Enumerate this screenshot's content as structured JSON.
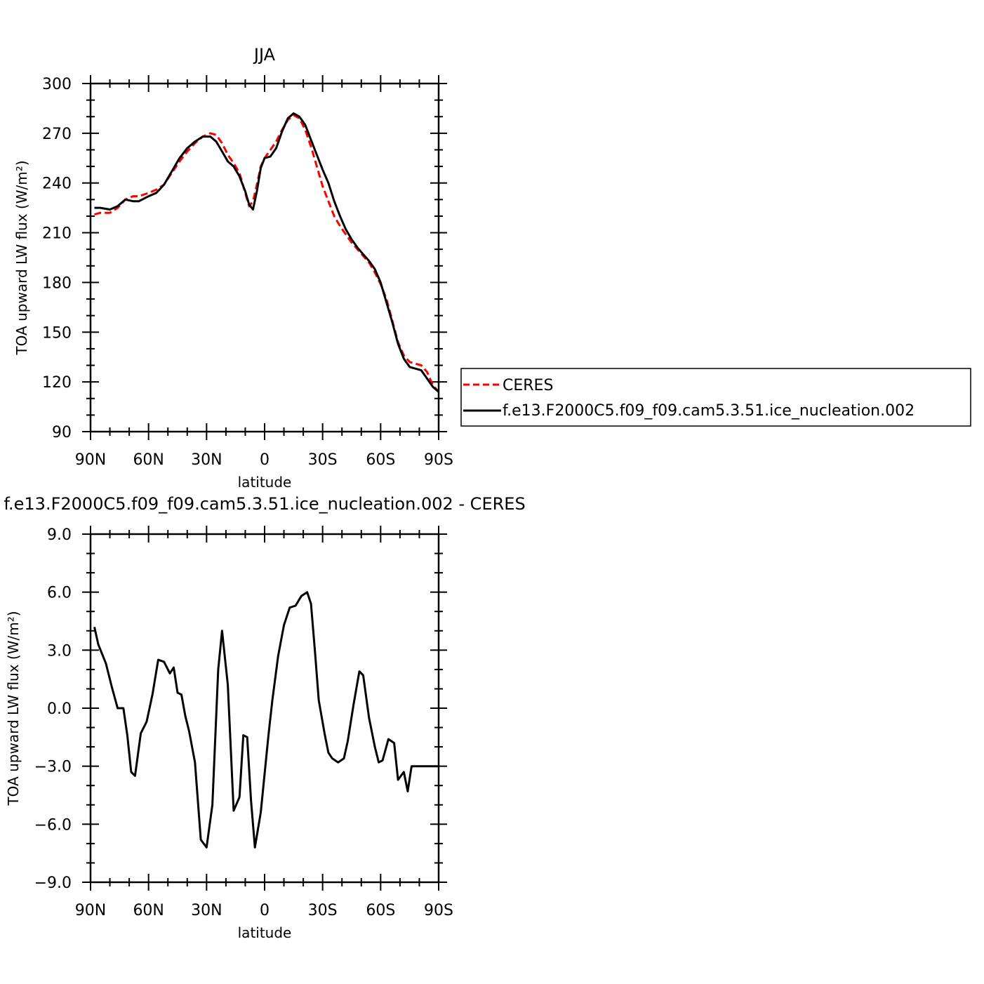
{
  "chart_data": [
    {
      "type": "line",
      "title": "JJA",
      "xlabel": "latitude",
      "ylabel": "TOA upward LW flux (W/m²)",
      "xlim": [
        -90,
        90
      ],
      "ylim": [
        90,
        300
      ],
      "x_tick_values": [
        -90,
        -60,
        -30,
        0,
        30,
        60,
        90
      ],
      "x_tick_labels": [
        "90N",
        "60N",
        "30N",
        "0",
        "30S",
        "60S",
        "90S"
      ],
      "y_tick_values": [
        90,
        120,
        150,
        180,
        210,
        240,
        270,
        300
      ],
      "y_tick_labels": [
        "90",
        "120",
        "150",
        "180",
        "210",
        "240",
        "270",
        "300"
      ],
      "legend_position": "right",
      "series": [
        {
          "name": "CERES",
          "color": "#ff0000",
          "dash": "dashed",
          "x": [
            -88,
            -85,
            -80,
            -76,
            -72,
            -68,
            -65,
            -60,
            -56,
            -52,
            -48,
            -44,
            -40,
            -36,
            -32,
            -28,
            -25,
            -22,
            -19,
            -16,
            -13,
            -10,
            -8,
            -6,
            -4,
            -2,
            0,
            3,
            6,
            9,
            12,
            15,
            18,
            21,
            24,
            27,
            30,
            33,
            36,
            39,
            42,
            45,
            48,
            51,
            54,
            57,
            60,
            63,
            66,
            69,
            72,
            75,
            78,
            81,
            84,
            87,
            90
          ],
          "y": [
            221,
            222,
            222,
            225,
            230,
            232,
            232,
            234,
            236,
            239,
            246,
            253,
            259,
            264,
            268,
            270,
            269,
            264,
            257,
            252,
            246,
            234,
            226,
            229,
            239,
            250,
            255,
            260,
            265,
            272,
            278,
            281,
            279,
            272,
            262,
            250,
            238,
            229,
            220,
            214,
            209,
            204,
            200,
            196,
            192,
            186,
            179,
            170,
            157,
            144,
            136,
            132,
            131,
            130,
            126,
            118,
            114
          ]
        },
        {
          "name": "f.e13.F2000C5.f09_f09.cam5.3.51.ice_nucleation.002",
          "color": "#000000",
          "dash": "solid",
          "x": [
            -88,
            -85,
            -80,
            -76,
            -72,
            -68,
            -65,
            -60,
            -56,
            -52,
            -48,
            -44,
            -40,
            -36,
            -32,
            -28,
            -25,
            -22,
            -19,
            -16,
            -13,
            -10,
            -8,
            -6,
            -4,
            -2,
            0,
            3,
            6,
            9,
            12,
            15,
            18,
            21,
            24,
            27,
            30,
            33,
            36,
            39,
            42,
            45,
            48,
            51,
            54,
            57,
            60,
            63,
            66,
            69,
            72,
            75,
            78,
            81,
            84,
            87,
            90
          ],
          "y": [
            225,
            225,
            224,
            226,
            230,
            229,
            229,
            232,
            234,
            239,
            247,
            255,
            261,
            265,
            268,
            268,
            265,
            259,
            253,
            250,
            244,
            235,
            227,
            224,
            235,
            249,
            255,
            256,
            261,
            271,
            279,
            282,
            280,
            275,
            266,
            257,
            248,
            240,
            229,
            220,
            212,
            206,
            201,
            197,
            193,
            188,
            180,
            168,
            156,
            143,
            134,
            129,
            128,
            127,
            122,
            117,
            114
          ]
        }
      ]
    },
    {
      "type": "line",
      "title": "f.e13.F2000C5.f09_f09.cam5.3.51.ice_nucleation.002 - CERES",
      "xlabel": "latitude",
      "ylabel": "TOA upward LW flux (W/m²)",
      "xlim": [
        -90,
        90
      ],
      "ylim": [
        -9,
        9
      ],
      "x_tick_values": [
        -90,
        -60,
        -30,
        0,
        30,
        60,
        90
      ],
      "x_tick_labels": [
        "90N",
        "60N",
        "30N",
        "0",
        "30S",
        "60S",
        "90S"
      ],
      "y_tick_values": [
        -9,
        -6,
        -3,
        0,
        3,
        6,
        9
      ],
      "y_tick_labels": [
        "−9.0",
        "−6.0",
        "−3.0",
        "0.0",
        "3.0",
        "6.0",
        "9.0"
      ],
      "series": [
        {
          "color": "#000000",
          "dash": "solid",
          "x": [
            -88,
            -86,
            -82,
            -79,
            -76,
            -73,
            -71,
            -69,
            -67,
            -64,
            -61,
            -58,
            -55,
            -52,
            -49,
            -47,
            -45,
            -43,
            -41,
            -39,
            -36,
            -33,
            -30,
            -27,
            -24,
            -22,
            -19,
            -16,
            -13,
            -11,
            -9,
            -7,
            -5,
            -2,
            0,
            2,
            4,
            7,
            10,
            13,
            16,
            19,
            22,
            24,
            26,
            28,
            31,
            33,
            35,
            38,
            41,
            43,
            46,
            49,
            51,
            54,
            57,
            59,
            61,
            64,
            67,
            69,
            72,
            74,
            76,
            78,
            80,
            83,
            86,
            88,
            90
          ],
          "y": [
            4.2,
            3.3,
            2.3,
            1.1,
            0.0,
            0.0,
            -1.4,
            -3.3,
            -3.5,
            -1.3,
            -0.7,
            0.7,
            2.5,
            2.4,
            1.8,
            2.1,
            0.8,
            0.7,
            -0.4,
            -1.2,
            -2.8,
            -6.8,
            -7.2,
            -5.0,
            2.0,
            4.0,
            1.2,
            -5.3,
            -4.6,
            -1.4,
            -1.5,
            -4.8,
            -7.2,
            -5.4,
            -3.4,
            -1.4,
            0.4,
            2.7,
            4.3,
            5.2,
            5.3,
            5.8,
            6.0,
            5.4,
            3.0,
            0.4,
            -1.3,
            -2.3,
            -2.6,
            -2.8,
            -2.6,
            -1.7,
            0.2,
            1.9,
            1.7,
            -0.5,
            -2.0,
            -2.8,
            -2.7,
            -1.6,
            -1.8,
            -3.7,
            -3.3,
            -4.3,
            -3.0,
            -3.0,
            -3.0,
            -3.0,
            -3.0,
            -3.0,
            -3.0
          ]
        }
      ]
    }
  ]
}
